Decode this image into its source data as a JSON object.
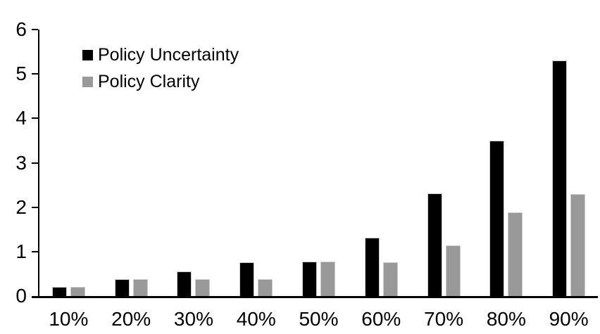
{
  "chart_data": {
    "type": "bar",
    "title": "",
    "xlabel": "",
    "ylabel": "",
    "categories": [
      "10%",
      "20%",
      "30%",
      "40%",
      "50%",
      "60%",
      "70%",
      "80%",
      "90%"
    ],
    "series": [
      {
        "name": "Policy Uncertainty",
        "color": "#000000",
        "values": [
          0.2,
          0.38,
          0.56,
          0.76,
          0.77,
          1.32,
          2.31,
          3.5,
          5.31
        ]
      },
      {
        "name": "Policy Clarity",
        "color": "#999999",
        "values": [
          0.2,
          0.38,
          0.38,
          0.38,
          0.77,
          0.76,
          1.14,
          1.88,
          2.29
        ]
      }
    ],
    "ylim": [
      0,
      6
    ],
    "yticks": [
      0,
      1,
      2,
      3,
      4,
      5,
      6
    ],
    "grid": false,
    "legend_position": "top-left",
    "background_color": "#ffffff",
    "axis_color": "#000000"
  }
}
